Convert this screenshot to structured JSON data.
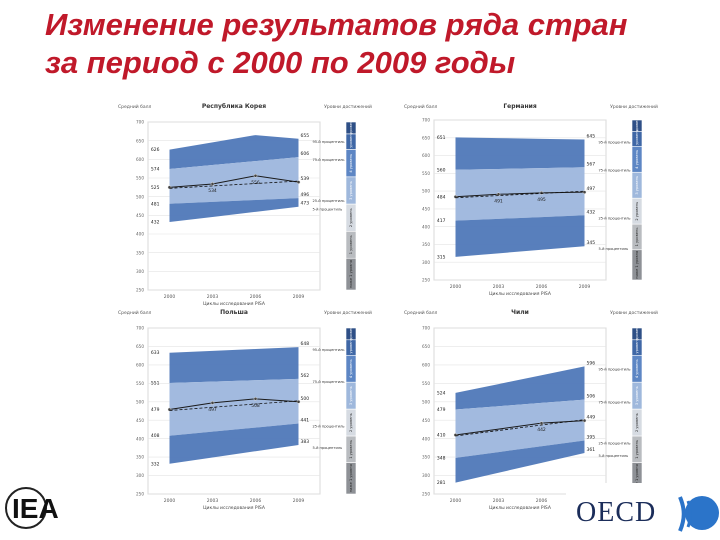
{
  "title_lines": [
    "Изменение результатов ряда стран",
    "за период с 2000 по 2009 годы"
  ],
  "logos": {
    "iea": "IEA",
    "oecd": "OECD"
  },
  "chart_data": [
    {
      "type": "line",
      "title": "Республика Корея",
      "ylabel": "Средний балл",
      "level_axis_title": "Уровни достижений",
      "xlabel": "Циклы исследования PISA",
      "x": [
        "2000",
        "2003",
        "2006",
        "2009"
      ],
      "ylim": [
        250,
        700
      ],
      "y_ticks": [
        "250",
        "300",
        "350",
        "400",
        "450",
        "500",
        "550",
        "600",
        "650",
        "700"
      ],
      "series": [
        {
          "name": "95th процентиль",
          "values": [
            626,
            null,
            665,
            655
          ]
        },
        {
          "name": "75th процентиль",
          "values": [
            574,
            null,
            null,
            606
          ]
        },
        {
          "name": "Mean",
          "values": [
            525,
            534,
            556,
            539
          ]
        },
        {
          "name": "25th процентиль",
          "values": [
            481,
            null,
            null,
            496
          ]
        },
        {
          "name": "5th процентиль",
          "values": [
            432,
            null,
            null,
            473
          ]
        }
      ],
      "left_labels": [
        "626",
        "574",
        "525",
        "481",
        "432"
      ],
      "mean_labels": [
        "534",
        "556"
      ],
      "right_labels": [
        "655",
        "606",
        "539",
        "496",
        "473"
      ],
      "percentile_labels": [
        "95-й процентиль",
        "75-й процентиль",
        "25-й процентиль",
        "5-й процентиль"
      ],
      "levels": [
        "6 уровень",
        "5 уровень",
        "4 уровень",
        "3 уровень",
        "2 уровень",
        "1 уровень",
        "ниже 1 уровня"
      ]
    },
    {
      "type": "line",
      "title": "Германия",
      "ylabel": "Средний балл",
      "level_axis_title": "Уровни достижений",
      "xlabel": "Циклы исследования PISA",
      "x": [
        "2000",
        "2003",
        "2006",
        "2009"
      ],
      "ylim": [
        250,
        700
      ],
      "y_ticks": [
        "250",
        "300",
        "350",
        "400",
        "450",
        "500",
        "550",
        "600",
        "650",
        "700"
      ],
      "series": [
        {
          "name": "95th процентиль",
          "values": [
            651,
            null,
            null,
            645
          ]
        },
        {
          "name": "75th процентиль",
          "values": [
            560,
            null,
            null,
            567
          ]
        },
        {
          "name": "Mean",
          "values": [
            484,
            491,
            495,
            497
          ]
        },
        {
          "name": "25th процентиль",
          "values": [
            417,
            null,
            null,
            432
          ]
        },
        {
          "name": "5th процентиль",
          "values": [
            315,
            null,
            null,
            345
          ]
        }
      ],
      "left_labels": [
        "651",
        "560",
        "484",
        "417",
        "315"
      ],
      "mean_labels": [
        "491",
        "495"
      ],
      "right_labels": [
        "645",
        "567",
        "497",
        "432",
        "345"
      ],
      "percentile_labels": [
        "95-й процентиль",
        "75-й процентиль",
        "25-й процентиль",
        "5-й процентиль"
      ],
      "levels": [
        "6 уровень",
        "5 уровень",
        "4 уровень",
        "3 уровень",
        "2 уровень",
        "1 уровень",
        "ниже 1 уровня"
      ]
    },
    {
      "type": "line",
      "title": "Польша",
      "ylabel": "Средний балл",
      "level_axis_title": "Уровни достижений",
      "xlabel": "Циклы исследования PISA",
      "x": [
        "2000",
        "2003",
        "2006",
        "2009"
      ],
      "ylim": [
        250,
        700
      ],
      "y_ticks": [
        "250",
        "300",
        "350",
        "400",
        "450",
        "500",
        "550",
        "600",
        "650",
        "700"
      ],
      "series": [
        {
          "name": "95th процентиль",
          "values": [
            633,
            null,
            null,
            648
          ]
        },
        {
          "name": "75th процентиль",
          "values": [
            551,
            null,
            null,
            562
          ]
        },
        {
          "name": "Mean",
          "values": [
            479,
            497,
            508,
            500
          ]
        },
        {
          "name": "25th процентиль",
          "values": [
            408,
            null,
            null,
            441
          ]
        },
        {
          "name": "5th процентиль",
          "values": [
            332,
            null,
            null,
            383
          ]
        }
      ],
      "left_labels": [
        "633",
        "551",
        "479",
        "408",
        "332"
      ],
      "mean_labels": [
        "497",
        "508"
      ],
      "right_labels": [
        "648",
        "562",
        "500",
        "441",
        "383"
      ],
      "percentile_labels": [
        "95-й процентиль",
        "75-й процентиль",
        "25-й процентиль",
        "5-й процентиль"
      ],
      "levels": [
        "6 уровень",
        "5 уровень",
        "4 уровень",
        "3 уровень",
        "2 уровень",
        "1 уровень",
        "ниже 1 уровня"
      ]
    },
    {
      "type": "line",
      "title": "Чили",
      "ylabel": "Средний балл",
      "level_axis_title": "Уровни достижений",
      "xlabel": "Циклы исследования PISA",
      "x": [
        "2000",
        "2003",
        "2006",
        "2009"
      ],
      "ylim": [
        250,
        700
      ],
      "y_ticks": [
        "250",
        "300",
        "350",
        "400",
        "450",
        "500",
        "550",
        "600",
        "650",
        "700"
      ],
      "series": [
        {
          "name": "95th процентиль",
          "values": [
            524,
            null,
            null,
            596
          ]
        },
        {
          "name": "75th процентиль",
          "values": [
            479,
            null,
            null,
            506
          ]
        },
        {
          "name": "Mean",
          "values": [
            410,
            null,
            442,
            449
          ]
        },
        {
          "name": "25th процентиль",
          "values": [
            348,
            null,
            null,
            395
          ]
        },
        {
          "name": "5th процентиль",
          "values": [
            281,
            null,
            null,
            361
          ]
        }
      ],
      "left_labels": [
        "524",
        "479",
        "410",
        "348",
        "281"
      ],
      "mean_labels": [
        "442"
      ],
      "right_labels": [
        "596",
        "506",
        "449",
        "395",
        "361"
      ],
      "percentile_labels": [
        "95-й процентиль",
        "75-й процентиль",
        "25-й процентиль",
        "5-й процентиль"
      ],
      "levels": [
        "6 уровень",
        "5 уровень",
        "4 уровень",
        "3 уровень",
        "2 уровень",
        "1 уровень",
        "ниже 1 уровня"
      ]
    }
  ]
}
